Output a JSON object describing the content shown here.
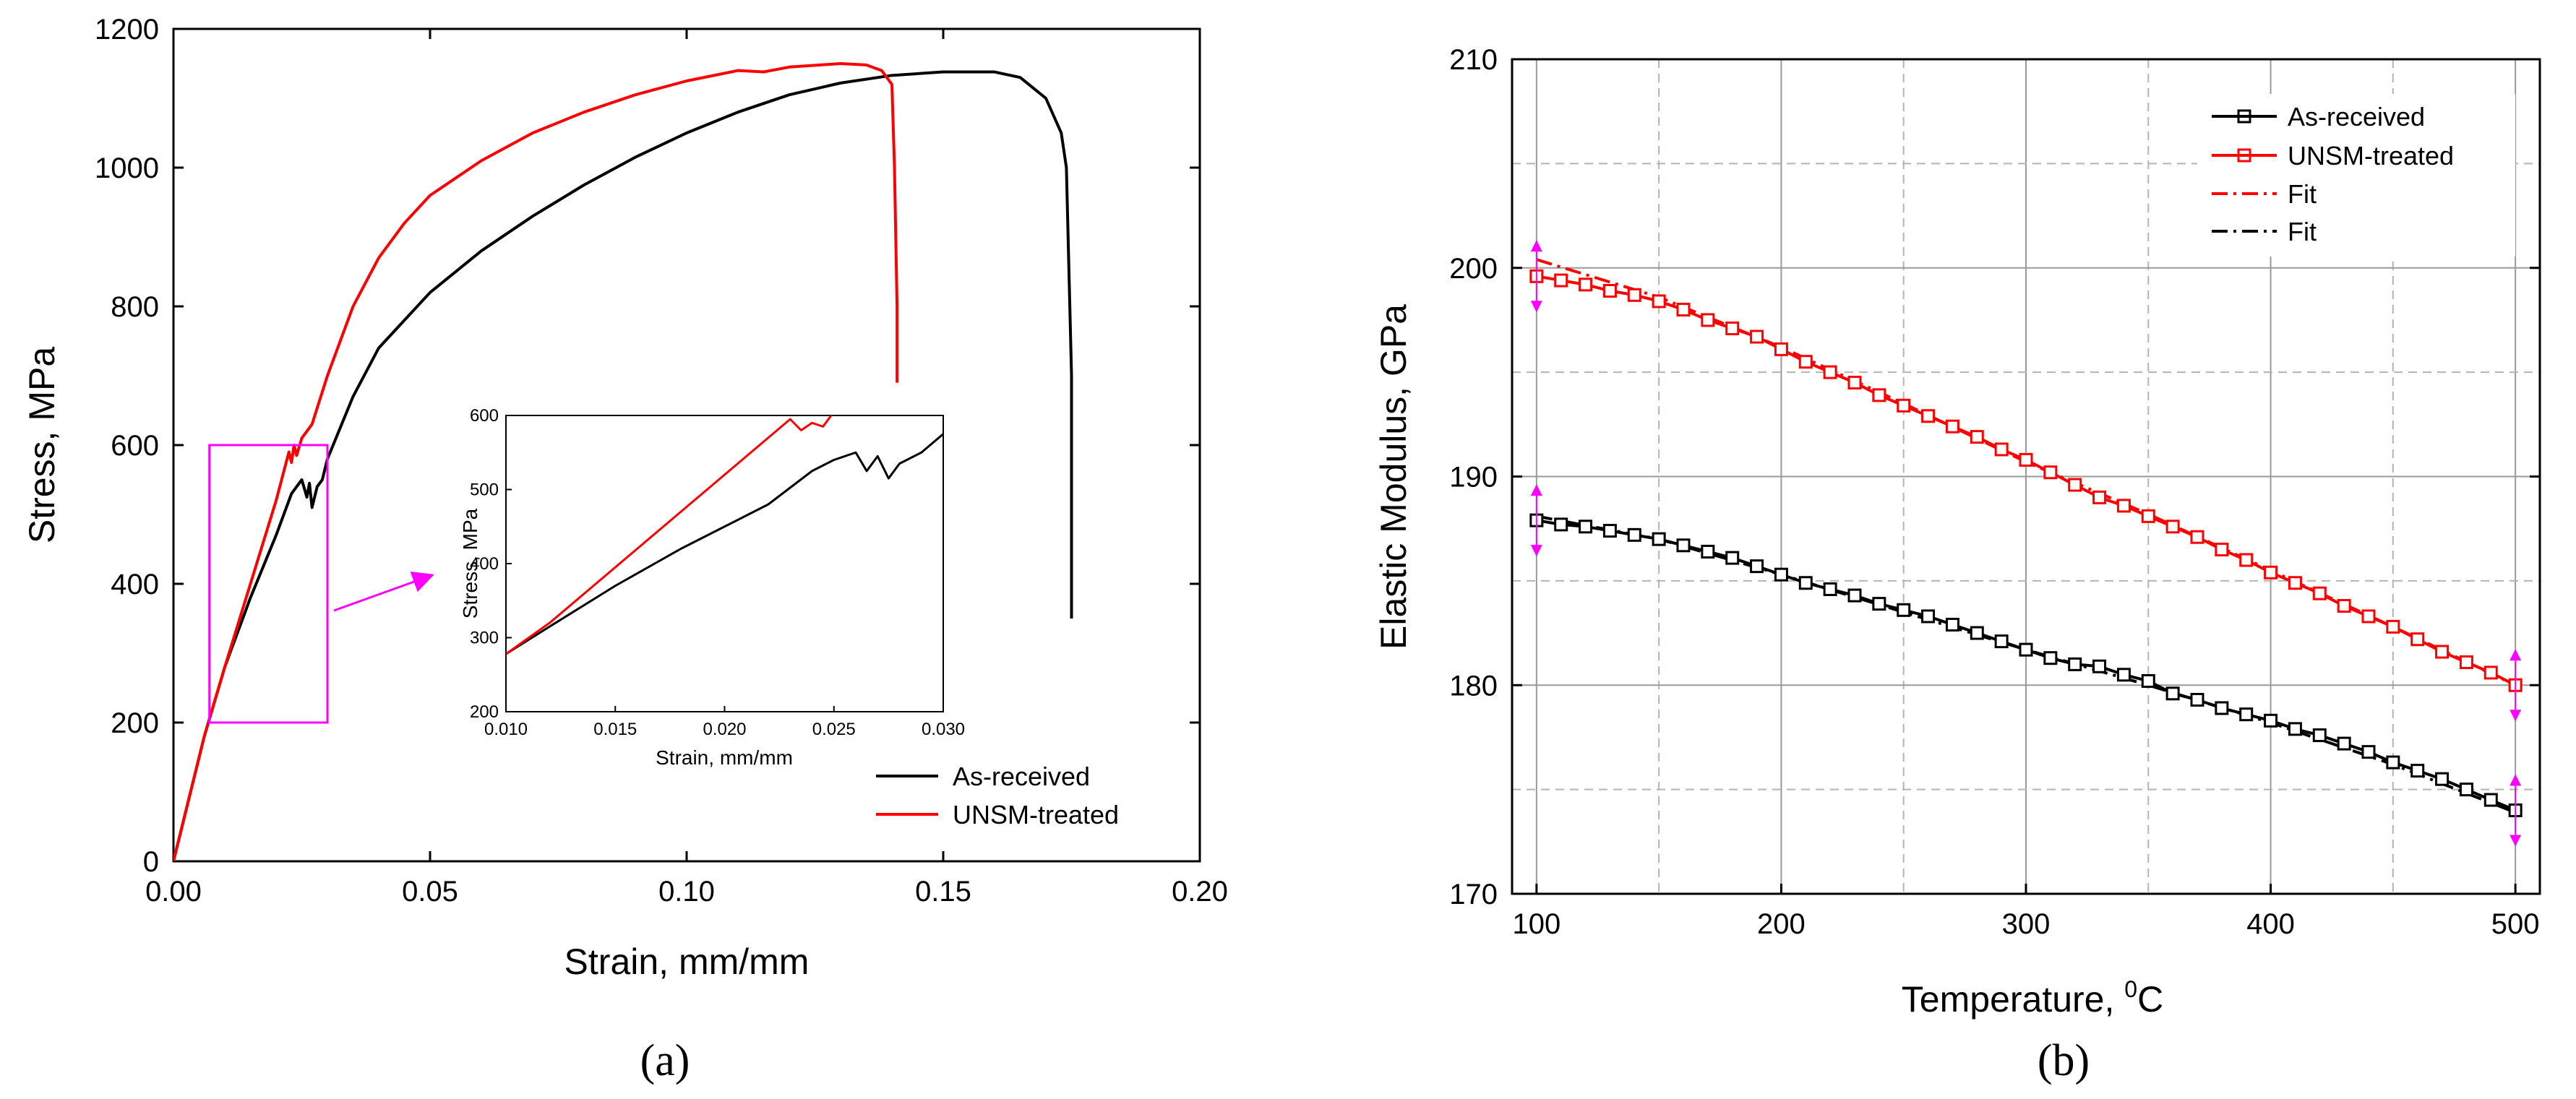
{
  "chart_data": [
    {
      "panel": "a",
      "type": "line",
      "xlabel": "Strain, mm/mm",
      "ylabel": "Stress, MPa",
      "xlim": [
        0,
        0.2
      ],
      "ylim": [
        0,
        1200
      ],
      "xticks": [
        "0.00",
        "0.05",
        "0.10",
        "0.15",
        "0.20"
      ],
      "yticks": [
        "0",
        "200",
        "400",
        "600",
        "800",
        "1000",
        "1200"
      ],
      "legend_position": "bottom-right",
      "series": [
        {
          "name": "As-received",
          "color": "#000000",
          "x": [
            0,
            0.006,
            0.01,
            0.015,
            0.02,
            0.023,
            0.025,
            0.026,
            0.0265,
            0.027,
            0.028,
            0.029,
            0.03,
            0.035,
            0.04,
            0.05,
            0.06,
            0.07,
            0.08,
            0.09,
            0.1,
            0.11,
            0.12,
            0.13,
            0.14,
            0.15,
            0.16,
            0.165,
            0.17,
            0.173,
            0.174,
            0.175,
            0.175
          ],
          "values": [
            0,
            180,
            280,
            380,
            470,
            530,
            550,
            525,
            545,
            510,
            540,
            550,
            580,
            670,
            740,
            820,
            880,
            930,
            975,
            1015,
            1050,
            1080,
            1105,
            1122,
            1133,
            1138,
            1138,
            1130,
            1100,
            1050,
            1000,
            700,
            350
          ]
        },
        {
          "name": "UNSM-treated",
          "color": "#ff0000",
          "x": [
            0,
            0.006,
            0.01,
            0.015,
            0.02,
            0.0225,
            0.023,
            0.0235,
            0.024,
            0.025,
            0.027,
            0.03,
            0.035,
            0.04,
            0.045,
            0.05,
            0.06,
            0.07,
            0.08,
            0.09,
            0.1,
            0.11,
            0.115,
            0.12,
            0.13,
            0.135,
            0.138,
            0.14,
            0.1405,
            0.141,
            0.141
          ],
          "values": [
            0,
            180,
            280,
            400,
            520,
            590,
            575,
            600,
            585,
            610,
            630,
            700,
            800,
            870,
            920,
            960,
            1010,
            1050,
            1080,
            1105,
            1125,
            1140,
            1138,
            1145,
            1150,
            1148,
            1140,
            1120,
            1000,
            800,
            690
          ]
        }
      ],
      "annotation": {
        "zoom_box": {
          "x_range": [
            0.007,
            0.03
          ],
          "y_range": [
            200,
            600
          ],
          "color": "#ff00ff"
        },
        "inset": {
          "xlabel": "Strain, mm/mm",
          "ylabel": "Stress, MPa",
          "xlim": [
            0.01,
            0.03
          ],
          "ylim": [
            200,
            600
          ],
          "xticks": [
            "0.010",
            "0.015",
            "0.020",
            "0.025",
            "0.030"
          ],
          "yticks": [
            "200",
            "300",
            "400",
            "500",
            "600"
          ],
          "series": [
            {
              "name": "As-received",
              "color": "#000000",
              "x": [
                0.01,
                0.012,
                0.015,
                0.018,
                0.02,
                0.022,
                0.024,
                0.025,
                0.026,
                0.0265,
                0.027,
                0.0275,
                0.028,
                0.029,
                0.03
              ],
              "values": [
                278,
                315,
                370,
                420,
                450,
                480,
                525,
                540,
                550,
                525,
                545,
                515,
                535,
                550,
                575
              ]
            },
            {
              "name": "UNSM-treated",
              "color": "#ff0000",
              "x": [
                0.01,
                0.012,
                0.015,
                0.018,
                0.02,
                0.021,
                0.022,
                0.023,
                0.0235,
                0.024,
                0.0245,
                0.025,
                0.0255
              ],
              "values": [
                278,
                320,
                395,
                470,
                520,
                545,
                570,
                595,
                580,
                590,
                585,
                605,
                615
              ]
            }
          ]
        }
      },
      "caption": "(a)"
    },
    {
      "panel": "b",
      "type": "line",
      "xlabel": "Temperature, ",
      "xlabel_superscript": "0",
      "xlabel_suffix": "C",
      "ylabel": "Elastic Modulus, GPa",
      "xlim": [
        90,
        510
      ],
      "ylim": [
        170,
        210
      ],
      "xticks": [
        "100",
        "200",
        "300",
        "400",
        "500"
      ],
      "yticks": [
        "170",
        "180",
        "190",
        "200",
        "210"
      ],
      "legend_position": "top-right",
      "series": [
        {
          "name": "As-received",
          "color": "#000000",
          "marker": "square",
          "x": [
            100,
            110,
            120,
            130,
            140,
            150,
            160,
            170,
            180,
            190,
            200,
            210,
            220,
            230,
            240,
            250,
            260,
            270,
            280,
            290,
            300,
            310,
            320,
            330,
            340,
            350,
            360,
            370,
            380,
            390,
            400,
            410,
            420,
            430,
            440,
            450,
            460,
            470,
            480,
            490,
            500
          ],
          "values": [
            187.9,
            187.7,
            187.6,
            187.4,
            187.2,
            187.0,
            186.7,
            186.4,
            186.1,
            185.7,
            185.3,
            184.9,
            184.6,
            184.3,
            183.9,
            183.6,
            183.3,
            182.9,
            182.5,
            182.1,
            181.7,
            181.3,
            181.0,
            180.9,
            180.5,
            180.2,
            179.6,
            179.3,
            178.9,
            178.6,
            178.3,
            177.9,
            177.6,
            177.2,
            176.8,
            176.3,
            175.9,
            175.5,
            175.0,
            174.5,
            174.0
          ]
        },
        {
          "name": "UNSM-treated",
          "color": "#ff0000",
          "marker": "square",
          "x": [
            100,
            110,
            120,
            130,
            140,
            150,
            160,
            170,
            180,
            190,
            200,
            210,
            220,
            230,
            240,
            250,
            260,
            270,
            280,
            290,
            300,
            310,
            320,
            330,
            340,
            350,
            360,
            370,
            380,
            390,
            400,
            410,
            420,
            430,
            440,
            450,
            460,
            470,
            480,
            490,
            500
          ],
          "values": [
            199.6,
            199.4,
            199.2,
            198.9,
            198.7,
            198.4,
            198.0,
            197.5,
            197.1,
            196.7,
            196.1,
            195.5,
            195.0,
            194.5,
            193.9,
            193.4,
            192.9,
            192.4,
            191.9,
            191.3,
            190.8,
            190.2,
            189.6,
            189.0,
            188.6,
            188.1,
            187.6,
            187.1,
            186.5,
            186.0,
            185.4,
            184.9,
            184.4,
            183.8,
            183.3,
            182.8,
            182.2,
            181.6,
            181.1,
            180.6,
            180.0
          ]
        },
        {
          "name": "Fit",
          "color": "#ff0000",
          "style": "dash-dot",
          "x": [
            100,
            150,
            200,
            250,
            300,
            350,
            400,
            450,
            500
          ],
          "values": [
            200.4,
            198.6,
            196.2,
            193.5,
            190.7,
            188.2,
            185.5,
            182.8,
            180.0
          ]
        },
        {
          "name": "Fit",
          "color": "#000000",
          "style": "dash-dot",
          "x": [
            100,
            150,
            200,
            250,
            300,
            350,
            400,
            450,
            500
          ],
          "values": [
            188.1,
            187.0,
            185.3,
            183.5,
            181.7,
            180.0,
            178.2,
            176.2,
            173.9
          ]
        }
      ],
      "error_markers_color": "#ff00ff",
      "caption": "(b)"
    }
  ]
}
